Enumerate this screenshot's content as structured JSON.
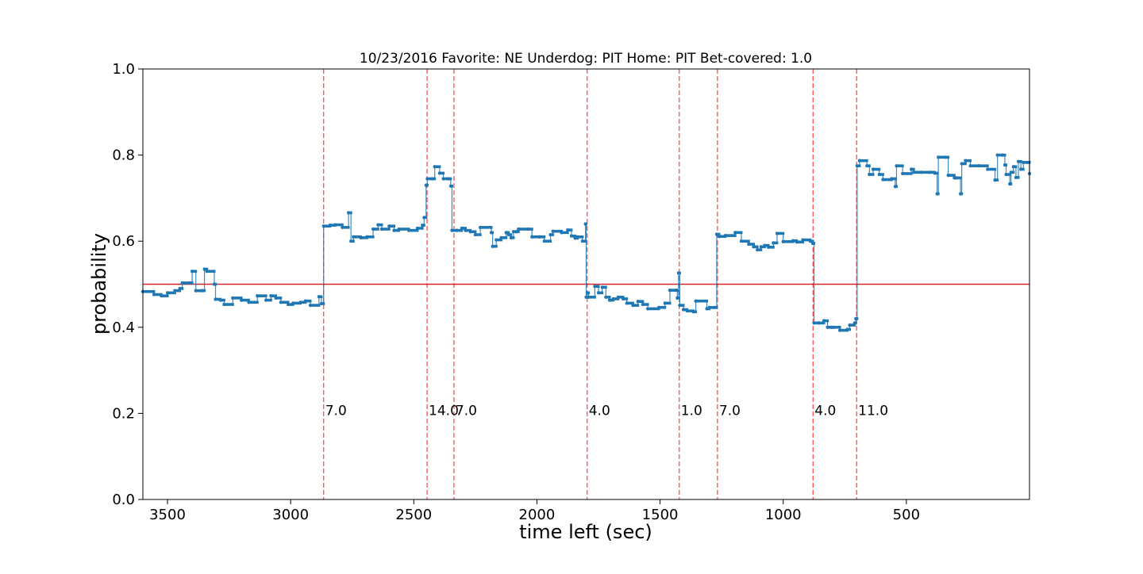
{
  "chart_data": {
    "type": "line",
    "title": "10/23/2016 Favorite: NE Underdog: PIT Home: PIT Bet-covered: 1.0",
    "xlabel": "time left (sec)",
    "ylabel": "probability",
    "xlim": [
      3600,
      0
    ],
    "ylim": [
      0.0,
      1.0
    ],
    "x_ticks": [
      3500,
      3000,
      2500,
      2000,
      1500,
      1000,
      500
    ],
    "y_ticks": [
      0.0,
      0.2,
      0.4,
      0.6,
      0.8,
      1.0
    ],
    "x_tick_labels": [
      "3500",
      "3000",
      "2500",
      "2000",
      "1500",
      "1000",
      "500"
    ],
    "y_tick_labels": [
      "0.0",
      "0.2",
      "0.4",
      "0.6",
      "0.8",
      "1.0"
    ],
    "grid": false,
    "reference_line": {
      "y": 0.5,
      "color": "#d62728"
    },
    "series": [
      {
        "color": "#1f77b4",
        "step": true,
        "points": [
          [
            3600,
            0.483
          ],
          [
            3555,
            0.476
          ],
          [
            3525,
            0.473
          ],
          [
            3500,
            0.48
          ],
          [
            3470,
            0.485
          ],
          [
            3450,
            0.49
          ],
          [
            3440,
            0.503
          ],
          [
            3410,
            0.503
          ],
          [
            3400,
            0.53
          ],
          [
            3385,
            0.485
          ],
          [
            3360,
            0.485
          ],
          [
            3350,
            0.535
          ],
          [
            3340,
            0.53
          ],
          [
            3310,
            0.5
          ],
          [
            3305,
            0.465
          ],
          [
            3285,
            0.463
          ],
          [
            3270,
            0.453
          ],
          [
            3235,
            0.468
          ],
          [
            3200,
            0.463
          ],
          [
            3170,
            0.458
          ],
          [
            3135,
            0.473
          ],
          [
            3100,
            0.463
          ],
          [
            3080,
            0.473
          ],
          [
            3060,
            0.468
          ],
          [
            3040,
            0.458
          ],
          [
            3010,
            0.453
          ],
          [
            2990,
            0.456
          ],
          [
            2960,
            0.458
          ],
          [
            2940,
            0.461
          ],
          [
            2920,
            0.451
          ],
          [
            2885,
            0.471
          ],
          [
            2875,
            0.455
          ],
          [
            2866,
            0.635
          ],
          [
            2840,
            0.637
          ],
          [
            2820,
            0.638
          ],
          [
            2790,
            0.632
          ],
          [
            2765,
            0.666
          ],
          [
            2755,
            0.6
          ],
          [
            2745,
            0.61
          ],
          [
            2715,
            0.608
          ],
          [
            2690,
            0.61
          ],
          [
            2665,
            0.628
          ],
          [
            2645,
            0.638
          ],
          [
            2630,
            0.628
          ],
          [
            2600,
            0.635
          ],
          [
            2580,
            0.625
          ],
          [
            2560,
            0.628
          ],
          [
            2520,
            0.625
          ],
          [
            2485,
            0.63
          ],
          [
            2465,
            0.637
          ],
          [
            2458,
            0.655
          ],
          [
            2450,
            0.73
          ],
          [
            2445,
            0.745
          ],
          [
            2425,
            0.745
          ],
          [
            2415,
            0.773
          ],
          [
            2395,
            0.758
          ],
          [
            2380,
            0.745
          ],
          [
            2360,
            0.745
          ],
          [
            2350,
            0.728
          ],
          [
            2345,
            0.625
          ],
          [
            2325,
            0.625
          ],
          [
            2305,
            0.63
          ],
          [
            2290,
            0.625
          ],
          [
            2270,
            0.622
          ],
          [
            2250,
            0.615
          ],
          [
            2230,
            0.632
          ],
          [
            2185,
            0.62
          ],
          [
            2180,
            0.588
          ],
          [
            2165,
            0.603
          ],
          [
            2145,
            0.608
          ],
          [
            2125,
            0.62
          ],
          [
            2115,
            0.615
          ],
          [
            2105,
            0.608
          ],
          [
            2095,
            0.622
          ],
          [
            2085,
            0.622
          ],
          [
            2075,
            0.628
          ],
          [
            2035,
            0.628
          ],
          [
            2020,
            0.61
          ],
          [
            1990,
            0.61
          ],
          [
            1970,
            0.6
          ],
          [
            1945,
            0.615
          ],
          [
            1935,
            0.623
          ],
          [
            1900,
            0.62
          ],
          [
            1875,
            0.626
          ],
          [
            1860,
            0.612
          ],
          [
            1845,
            0.607
          ],
          [
            1835,
            0.61
          ],
          [
            1815,
            0.6
          ],
          [
            1803,
            0.64
          ],
          [
            1800,
            0.47
          ],
          [
            1795,
            0.48
          ],
          [
            1790,
            0.47
          ],
          [
            1765,
            0.495
          ],
          [
            1750,
            0.48
          ],
          [
            1735,
            0.493
          ],
          [
            1720,
            0.47
          ],
          [
            1705,
            0.463
          ],
          [
            1690,
            0.466
          ],
          [
            1670,
            0.47
          ],
          [
            1650,
            0.466
          ],
          [
            1635,
            0.456
          ],
          [
            1610,
            0.451
          ],
          [
            1590,
            0.46
          ],
          [
            1570,
            0.453
          ],
          [
            1550,
            0.443
          ],
          [
            1505,
            0.446
          ],
          [
            1480,
            0.456
          ],
          [
            1460,
            0.486
          ],
          [
            1435,
            0.486
          ],
          [
            1430,
            0.468
          ],
          [
            1425,
            0.526
          ],
          [
            1420,
            0.451
          ],
          [
            1405,
            0.441
          ],
          [
            1390,
            0.438
          ],
          [
            1365,
            0.436
          ],
          [
            1355,
            0.461
          ],
          [
            1310,
            0.443
          ],
          [
            1300,
            0.446
          ],
          [
            1280,
            0.446
          ],
          [
            1270,
            0.616
          ],
          [
            1260,
            0.611
          ],
          [
            1235,
            0.613
          ],
          [
            1195,
            0.62
          ],
          [
            1170,
            0.6
          ],
          [
            1140,
            0.593
          ],
          [
            1120,
            0.587
          ],
          [
            1105,
            0.58
          ],
          [
            1090,
            0.587
          ],
          [
            1075,
            0.59
          ],
          [
            1060,
            0.586
          ],
          [
            1040,
            0.596
          ],
          [
            1025,
            0.618
          ],
          [
            1000,
            0.599
          ],
          [
            960,
            0.601
          ],
          [
            945,
            0.598
          ],
          [
            920,
            0.603
          ],
          [
            890,
            0.6
          ],
          [
            880,
            0.595
          ],
          [
            875,
            0.41
          ],
          [
            855,
            0.41
          ],
          [
            835,
            0.415
          ],
          [
            820,
            0.4
          ],
          [
            805,
            0.4
          ],
          [
            795,
            0.4
          ],
          [
            770,
            0.393
          ],
          [
            740,
            0.395
          ],
          [
            730,
            0.405
          ],
          [
            710,
            0.41
          ],
          [
            705,
            0.42
          ],
          [
            700,
            0.775
          ],
          [
            690,
            0.787
          ],
          [
            660,
            0.775
          ],
          [
            650,
            0.755
          ],
          [
            635,
            0.767
          ],
          [
            610,
            0.755
          ],
          [
            595,
            0.743
          ],
          [
            560,
            0.745
          ],
          [
            545,
            0.727
          ],
          [
            540,
            0.775
          ],
          [
            515,
            0.757
          ],
          [
            480,
            0.767
          ],
          [
            470,
            0.76
          ],
          [
            440,
            0.76
          ],
          [
            405,
            0.76
          ],
          [
            385,
            0.758
          ],
          [
            375,
            0.71
          ],
          [
            370,
            0.795
          ],
          [
            340,
            0.795
          ],
          [
            330,
            0.753
          ],
          [
            305,
            0.747
          ],
          [
            295,
            0.747
          ],
          [
            280,
            0.71
          ],
          [
            275,
            0.78
          ],
          [
            260,
            0.787
          ],
          [
            240,
            0.775
          ],
          [
            205,
            0.775
          ],
          [
            170,
            0.767
          ],
          [
            140,
            0.742
          ],
          [
            130,
            0.8
          ],
          [
            110,
            0.8
          ],
          [
            100,
            0.777
          ],
          [
            95,
            0.755
          ],
          [
            80,
            0.733
          ],
          [
            75,
            0.76
          ],
          [
            65,
            0.773
          ],
          [
            55,
            0.748
          ],
          [
            45,
            0.785
          ],
          [
            35,
            0.767
          ],
          [
            25,
            0.783
          ],
          [
            10,
            0.783
          ],
          [
            0,
            0.757
          ]
        ]
      }
    ],
    "events": [
      {
        "x": 2866,
        "label": "7.0"
      },
      {
        "x": 2446,
        "label": "14.0"
      },
      {
        "x": 2337,
        "label": "7.0"
      },
      {
        "x": 1796,
        "label": "4.0"
      },
      {
        "x": 1422,
        "label": "1.0"
      },
      {
        "x": 1267,
        "label": "7.0"
      },
      {
        "x": 879,
        "label": "4.0"
      },
      {
        "x": 702,
        "label": "11.0"
      }
    ],
    "event_line_color": "#ff0000"
  }
}
